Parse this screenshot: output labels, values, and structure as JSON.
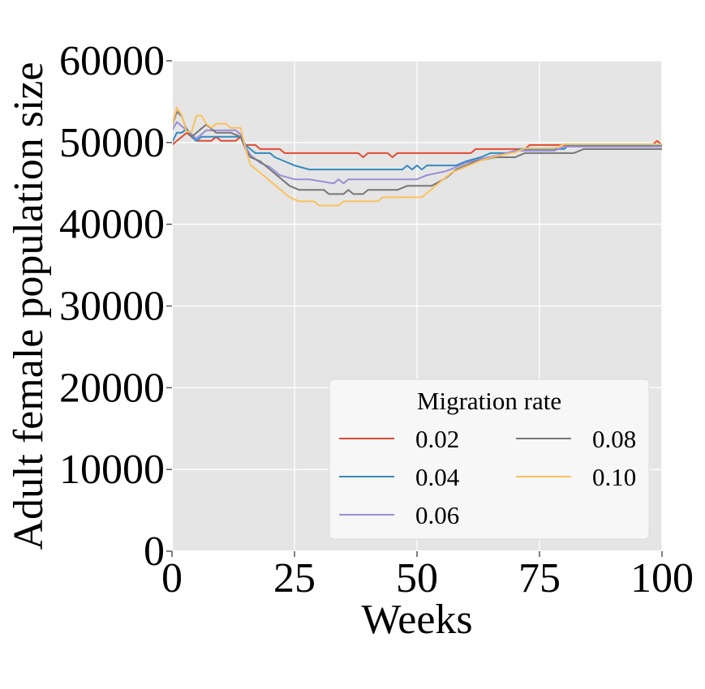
{
  "chart_data": {
    "type": "line",
    "title": "",
    "xlabel": "Weeks",
    "ylabel": "Adult female population size",
    "xlim": [
      0,
      100
    ],
    "ylim": [
      0,
      60000
    ],
    "xticks": [
      0,
      25,
      50,
      75,
      100
    ],
    "xtick_labels": [
      "0",
      "25",
      "50",
      "75",
      "100"
    ],
    "yticks": [
      0,
      10000,
      20000,
      30000,
      40000,
      50000,
      60000
    ],
    "ytick_labels": [
      "0",
      "10000",
      "20000",
      "30000",
      "40000",
      "50000",
      "60000"
    ],
    "grid": true,
    "legend": {
      "title": "Migration rate",
      "placement": "lower-right",
      "columns": 2
    },
    "series": [
      {
        "name": "0.02",
        "color": "#e24a33",
        "points": [
          [
            0,
            49700
          ],
          [
            1,
            50200
          ],
          [
            2,
            50700
          ],
          [
            3,
            51200
          ],
          [
            4,
            50700
          ],
          [
            5,
            50200
          ],
          [
            8,
            50200
          ],
          [
            9,
            50700
          ],
          [
            10,
            50200
          ],
          [
            13,
            50200
          ],
          [
            14,
            50700
          ],
          [
            15,
            49700
          ],
          [
            17,
            49700
          ],
          [
            18,
            49200
          ],
          [
            22,
            49200
          ],
          [
            23,
            48700
          ],
          [
            38,
            48700
          ],
          [
            39,
            48200
          ],
          [
            40,
            48700
          ],
          [
            44,
            48700
          ],
          [
            45,
            48200
          ],
          [
            46,
            48700
          ],
          [
            61,
            48700
          ],
          [
            62,
            49200
          ],
          [
            72,
            49200
          ],
          [
            73,
            49700
          ],
          [
            98,
            49700
          ],
          [
            99,
            50200
          ],
          [
            100,
            49700
          ]
        ]
      },
      {
        "name": "0.04",
        "color": "#348abd",
        "points": [
          [
            0,
            50000
          ],
          [
            1,
            51200
          ],
          [
            2,
            51200
          ],
          [
            3,
            51700
          ],
          [
            4,
            50700
          ],
          [
            5,
            50200
          ],
          [
            6,
            50700
          ],
          [
            10,
            50700
          ],
          [
            14,
            50700
          ],
          [
            15,
            49700
          ],
          [
            16,
            49200
          ],
          [
            17,
            48700
          ],
          [
            20,
            48700
          ],
          [
            21,
            48200
          ],
          [
            23,
            47700
          ],
          [
            25,
            47200
          ],
          [
            28,
            46700
          ],
          [
            47,
            46700
          ],
          [
            48,
            47200
          ],
          [
            49,
            46700
          ],
          [
            50,
            47200
          ],
          [
            51,
            46700
          ],
          [
            52,
            47200
          ],
          [
            58,
            47200
          ],
          [
            60,
            47700
          ],
          [
            63,
            48200
          ],
          [
            65,
            48700
          ],
          [
            69,
            48700
          ],
          [
            71,
            49200
          ],
          [
            80,
            49200
          ],
          [
            81,
            49700
          ],
          [
            100,
            49700
          ]
        ]
      },
      {
        "name": "0.06",
        "color": "#988ed5",
        "points": [
          [
            0,
            51500
          ],
          [
            1,
            52500
          ],
          [
            2,
            52000
          ],
          [
            3,
            51500
          ],
          [
            4,
            51000
          ],
          [
            5,
            50500
          ],
          [
            6,
            51000
          ],
          [
            7,
            51500
          ],
          [
            13,
            51500
          ],
          [
            14,
            51000
          ],
          [
            15,
            49500
          ],
          [
            16,
            48500
          ],
          [
            18,
            47500
          ],
          [
            20,
            47000
          ],
          [
            22,
            46000
          ],
          [
            25,
            45500
          ],
          [
            28,
            45500
          ],
          [
            33,
            45000
          ],
          [
            34,
            45500
          ],
          [
            35,
            45000
          ],
          [
            36,
            45500
          ],
          [
            50,
            45500
          ],
          [
            52,
            46000
          ],
          [
            56,
            46500
          ],
          [
            58,
            47000
          ],
          [
            60,
            47500
          ],
          [
            63,
            48000
          ],
          [
            67,
            48500
          ],
          [
            70,
            49000
          ],
          [
            78,
            49000
          ],
          [
            80,
            49500
          ],
          [
            100,
            49500
          ]
        ]
      },
      {
        "name": "0.08",
        "color": "#777777",
        "points": [
          [
            0,
            52000
          ],
          [
            1,
            53800
          ],
          [
            2,
            53200
          ],
          [
            3,
            51500
          ],
          [
            4,
            50700
          ],
          [
            5,
            51200
          ],
          [
            6,
            51700
          ],
          [
            7,
            52200
          ],
          [
            8,
            51700
          ],
          [
            9,
            51200
          ],
          [
            12,
            51200
          ],
          [
            14,
            50700
          ],
          [
            15,
            49200
          ],
          [
            16,
            48200
          ],
          [
            18,
            47700
          ],
          [
            20,
            46700
          ],
          [
            22,
            45700
          ],
          [
            24,
            44700
          ],
          [
            26,
            44200
          ],
          [
            31,
            44200
          ],
          [
            32,
            43700
          ],
          [
            35,
            43700
          ],
          [
            36,
            44200
          ],
          [
            37,
            43700
          ],
          [
            39,
            43700
          ],
          [
            40,
            44200
          ],
          [
            46,
            44200
          ],
          [
            48,
            44700
          ],
          [
            53,
            44700
          ],
          [
            56,
            45700
          ],
          [
            58,
            46700
          ],
          [
            60,
            47200
          ],
          [
            62,
            47700
          ],
          [
            66,
            48200
          ],
          [
            70,
            48200
          ],
          [
            72,
            48700
          ],
          [
            82,
            48700
          ],
          [
            84,
            49200
          ],
          [
            100,
            49200
          ]
        ]
      },
      {
        "name": "0.10",
        "color": "#fbc15e",
        "points": [
          [
            0,
            52000
          ],
          [
            1,
            54300
          ],
          [
            2,
            53300
          ],
          [
            3,
            51300
          ],
          [
            4,
            51300
          ],
          [
            5,
            53300
          ],
          [
            6,
            53300
          ],
          [
            7,
            52300
          ],
          [
            8,
            51800
          ],
          [
            9,
            52300
          ],
          [
            10,
            52300
          ],
          [
            11,
            52300
          ],
          [
            12,
            51800
          ],
          [
            14,
            51800
          ],
          [
            15,
            49300
          ],
          [
            16,
            47300
          ],
          [
            18,
            46300
          ],
          [
            20,
            45300
          ],
          [
            22,
            44300
          ],
          [
            24,
            43300
          ],
          [
            26,
            42800
          ],
          [
            29,
            42800
          ],
          [
            30,
            42300
          ],
          [
            34,
            42300
          ],
          [
            35,
            42800
          ],
          [
            42,
            42800
          ],
          [
            43,
            43300
          ],
          [
            51,
            43300
          ],
          [
            53,
            44300
          ],
          [
            55,
            45300
          ],
          [
            57,
            46300
          ],
          [
            59,
            46800
          ],
          [
            61,
            47300
          ],
          [
            63,
            47800
          ],
          [
            66,
            48300
          ],
          [
            70,
            48800
          ],
          [
            72,
            49300
          ],
          [
            78,
            49300
          ],
          [
            80,
            49800
          ],
          [
            100,
            49800
          ]
        ]
      }
    ]
  }
}
